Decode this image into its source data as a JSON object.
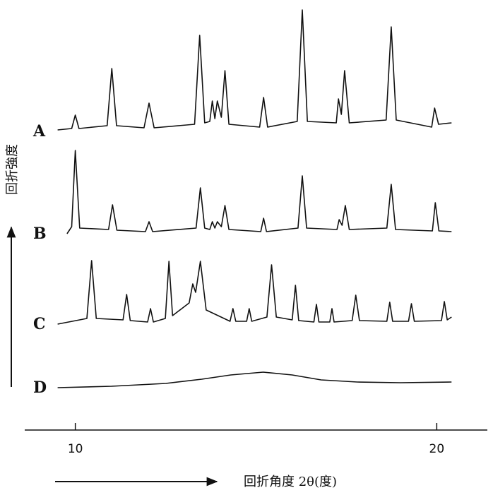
{
  "chart_data": {
    "type": "line",
    "x_label": "回折角度 2θ(度)",
    "y_label": "回折強度",
    "xlim": [
      8.6,
      21.4
    ],
    "xticks": [
      10,
      20
    ],
    "ylim": [
      0,
      180
    ],
    "color": "#111111",
    "series": [
      {
        "name": "A",
        "x": [
          9.51,
          9.9,
          10.0,
          10.1,
          10.88,
          11.01,
          11.14,
          11.9,
          12.04,
          12.18,
          13.3,
          13.44,
          13.58,
          13.72,
          13.79,
          13.86,
          13.93,
          14.04,
          14.14,
          14.25,
          15.1,
          15.21,
          15.32,
          16.14,
          16.28,
          16.42,
          17.22,
          17.28,
          17.36,
          17.45,
          17.58,
          18.6,
          18.74,
          18.88,
          19.86,
          19.94,
          20.05,
          20.41
        ],
        "values": [
          2,
          4,
          23,
          4,
          8,
          89,
          8,
          5,
          40,
          5,
          10,
          136,
          12,
          14,
          43,
          18,
          43,
          20,
          86,
          10,
          6,
          48,
          6,
          14,
          172,
          14,
          12,
          46,
          24,
          86,
          12,
          16,
          148,
          16,
          6,
          33,
          10,
          12
        ]
      },
      {
        "name": "B",
        "x": [
          9.77,
          9.9,
          10.0,
          10.12,
          10.92,
          11.03,
          11.15,
          11.94,
          12.04,
          12.14,
          13.34,
          13.46,
          13.58,
          13.72,
          13.79,
          13.86,
          13.93,
          14.04,
          14.14,
          14.25,
          15.13,
          15.21,
          15.29,
          16.16,
          16.28,
          16.4,
          17.24,
          17.3,
          17.38,
          17.47,
          17.58,
          18.62,
          18.74,
          18.86,
          19.88,
          19.96,
          20.06,
          20.41
        ],
        "values": [
          0,
          10,
          118,
          8,
          6,
          41,
          5,
          3,
          17,
          3,
          8,
          65,
          8,
          6,
          17,
          8,
          17,
          10,
          40,
          6,
          3,
          22,
          3,
          8,
          82,
          8,
          6,
          20,
          12,
          40,
          6,
          8,
          70,
          6,
          4,
          44,
          4,
          3
        ]
      },
      {
        "name": "C",
        "x": [
          9.51,
          10.32,
          10.45,
          10.58,
          11.32,
          11.42,
          11.52,
          12.0,
          12.08,
          12.16,
          12.49,
          12.59,
          12.69,
          13.15,
          13.25,
          13.33,
          13.46,
          13.62,
          14.28,
          14.36,
          14.44,
          14.74,
          14.81,
          14.88,
          15.3,
          15.43,
          15.56,
          16.0,
          16.09,
          16.18,
          16.6,
          16.67,
          16.74,
          17.04,
          17.1,
          17.16,
          17.66,
          17.76,
          17.86,
          18.62,
          18.7,
          18.78,
          19.22,
          19.3,
          19.38,
          20.13,
          20.21,
          20.29,
          20.41
        ],
        "values": [
          0,
          8,
          90,
          8,
          6,
          42,
          5,
          3,
          22,
          3,
          8,
          89,
          12,
          30,
          57,
          45,
          89,
          20,
          4,
          22,
          4,
          4,
          22,
          4,
          10,
          84,
          10,
          6,
          55,
          5,
          3,
          28,
          3,
          3,
          22,
          3,
          5,
          41,
          5,
          4,
          31,
          4,
          4,
          29,
          4,
          5,
          32,
          6,
          10
        ]
      },
      {
        "name": "D",
        "x": [
          9.51,
          11.0,
          12.5,
          13.5,
          14.3,
          15.2,
          16.0,
          16.8,
          17.8,
          19.0,
          20.41
        ],
        "values": [
          0,
          2,
          6,
          12,
          18,
          22,
          18,
          11,
          8,
          7,
          8
        ]
      }
    ]
  }
}
